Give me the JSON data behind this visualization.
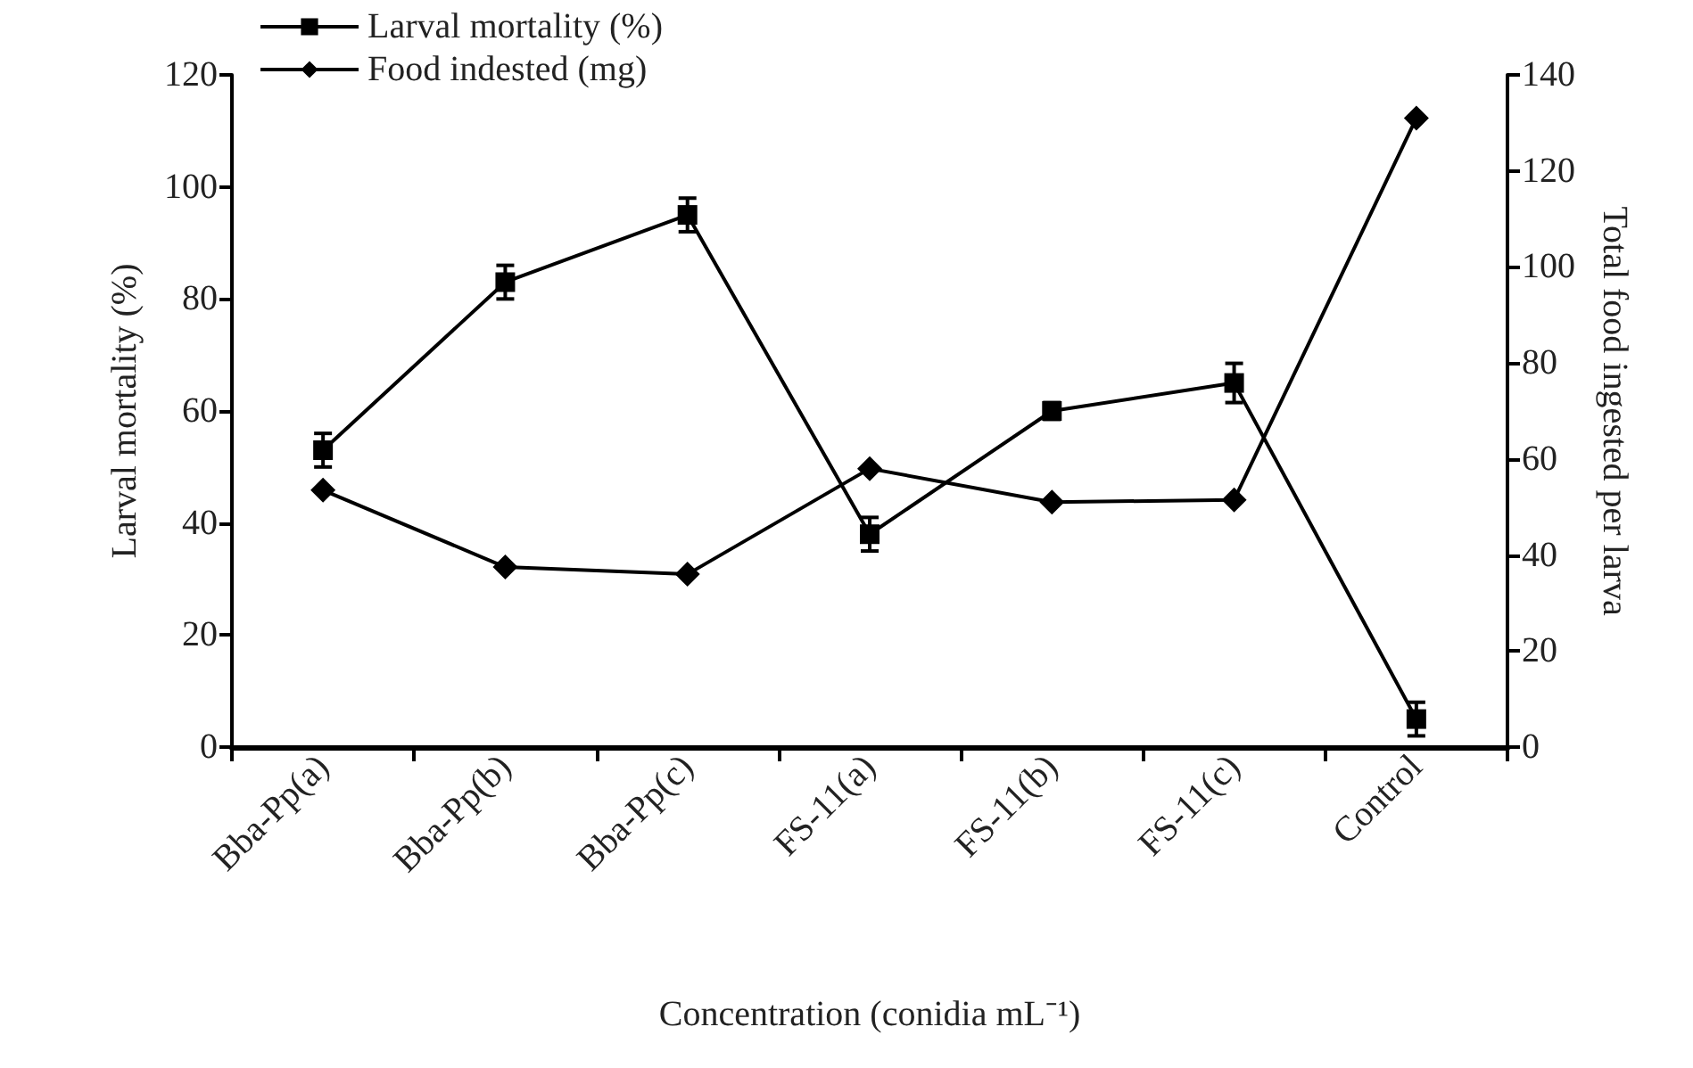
{
  "chart_data": {
    "type": "line",
    "xlabel": "Concentration (conidia mL⁻¹)",
    "ylabel": "Larval mortality (%)",
    "y2label": "Total food ingested per larva",
    "categories": [
      "Bba-Pp(a)",
      "Bba-Pp(b)",
      "Bba-Pp(c)",
      "FS-11(a)",
      "FS-11(b)",
      "FS-11(c)",
      "Control"
    ],
    "series": [
      {
        "name": "Larval mortality (%)",
        "color": "#000000",
        "marker": "square",
        "values": [
          53,
          83,
          95,
          38,
          60,
          65,
          5
        ],
        "errors": [
          3,
          3,
          3,
          3,
          1.5,
          3.5,
          3
        ]
      },
      {
        "name": "Food indested (mg)",
        "color": "#000000",
        "marker": "diamond",
        "axis": "y2",
        "values": [
          53.5,
          37.5,
          36,
          58,
          51,
          51.5,
          131
        ]
      }
    ],
    "ylim": [
      0,
      120
    ],
    "yticks": [
      0,
      20,
      40,
      60,
      80,
      100,
      120
    ],
    "y2lim": [
      0,
      140
    ],
    "y2ticks": [
      0,
      20,
      40,
      60,
      80,
      100,
      120,
      140
    ],
    "legend": "top left",
    "grid": false,
    "line_style": "solid"
  }
}
